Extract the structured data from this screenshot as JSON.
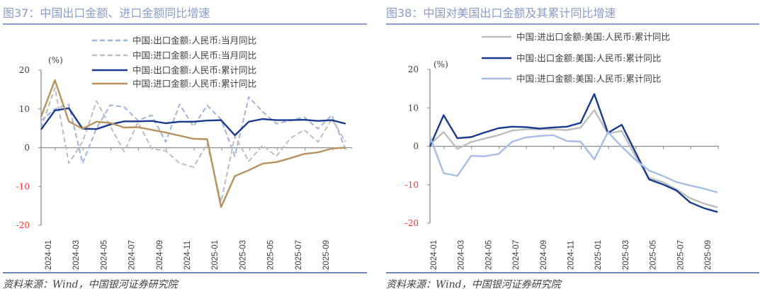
{
  "chart_data": [
    {
      "type": "line",
      "title": "图37：中国出口金额、进口金额同比增速",
      "unit_label": "(%)",
      "ylim": [
        -20,
        20
      ],
      "yticks": [
        "20",
        "10",
        "0",
        "-10",
        "-20"
      ],
      "x": [
        "2023-12",
        "2024-01",
        "2024-02",
        "2024-03",
        "2024-04",
        "2024-05",
        "2024-06",
        "2024-07",
        "2024-08",
        "2024-09",
        "2024-10",
        "2024-11",
        "2024-12",
        "2025-01",
        "2025-02",
        "2025-03",
        "2025-04",
        "2025-05",
        "2025-06",
        "2025-07",
        "2025-08",
        "2025-09",
        "2025-10"
      ],
      "xtick_labels": [
        "2024-01",
        "2024-03",
        "2024-05",
        "2024-07",
        "2024-09",
        "2024-11",
        "2025-01",
        "2025-03",
        "2025-05",
        "2025-07",
        "2025-09"
      ],
      "legend_position": "top",
      "series": [
        {
          "name": "中国:出口金额:人民币:当月同比",
          "color": "#9db3e0",
          "dash": true,
          "values": [
            7,
            10,
            11.2,
            -4,
            5,
            11,
            10.5,
            7,
            8.4,
            1.5,
            11.2,
            5.5,
            10.9,
            7.3,
            -2.2,
            13.1,
            9.3,
            6.2,
            7,
            7.9,
            4.9,
            8.4,
            -0.5
          ]
        },
        {
          "name": "中国:进口金额:人民币:当月同比",
          "color": "#bdbdbd",
          "dash": true,
          "values": [
            5,
            15.5,
            -4,
            1.5,
            12,
            5.5,
            -1,
            6.5,
            -0.3,
            -0.8,
            -4,
            -5,
            1,
            -14,
            3,
            -3.5,
            0.6,
            -2.2,
            2.4,
            4.6,
            1.5,
            7.4,
            1.5
          ]
        },
        {
          "name": "中国:出口金额:人民币:累计同比",
          "color": "#1a3a8f",
          "dash": false,
          "values": [
            4.7,
            9.6,
            10.2,
            4.9,
            4.8,
            6.0,
            6.8,
            6.8,
            6.9,
            6.3,
            6.7,
            6.7,
            7.0,
            7.1,
            3.2,
            6.7,
            7.4,
            7.1,
            7.1,
            7.2,
            6.9,
            7.1,
            6.2
          ]
        },
        {
          "name": "中国:进口金额:人民币:累计同比",
          "color": "#b8925e",
          "dash": false,
          "values": [
            8,
            17.4,
            6.8,
            4.9,
            6.7,
            6.4,
            5.2,
            5.3,
            4.6,
            3.9,
            3.1,
            2.3,
            2.2,
            -15.3,
            -7.3,
            -5.8,
            -4.1,
            -3.7,
            -2.7,
            -1.6,
            -1.2,
            -0.2,
            0
          ]
        }
      ]
    },
    {
      "type": "line",
      "title": "图38：中国对美国出口金额及其累计同比增速",
      "unit_label": "(%)",
      "ylim": [
        -20,
        20
      ],
      "yticks": [
        "20",
        "10",
        "0",
        "-10",
        "-20"
      ],
      "x": [
        "2024-01",
        "2024-02",
        "2024-03",
        "2024-04",
        "2024-05",
        "2024-06",
        "2024-07",
        "2024-08",
        "2024-09",
        "2024-10",
        "2024-11",
        "2024-12",
        "2025-01",
        "2025-02",
        "2025-03",
        "2025-04",
        "2025-05",
        "2025-06",
        "2025-07",
        "2025-08",
        "2025-09",
        "2025-10"
      ],
      "xtick_labels": [
        "2024-01",
        "2024-03",
        "2024-05",
        "2024-07",
        "2024-09",
        "2024-11",
        "2025-01",
        "2025-03",
        "2025-05",
        "2025-07",
        "2025-09"
      ],
      "legend_position": "top",
      "series": [
        {
          "name": "中国:进出口金额:美国:人民币:累计同比",
          "color": "#bdbdbd",
          "dash": false,
          "values": [
            0.5,
            3.7,
            -0.7,
            1.1,
            2.0,
            2.9,
            4.1,
            4.4,
            4.4,
            4.4,
            4.2,
            4.9,
            9.4,
            3.3,
            4.0,
            -2.5,
            -8.2,
            -9.3,
            -11.2,
            -13.5,
            -14.9,
            -15.9
          ]
        },
        {
          "name": "中国:出口金额:美国:人民币:累计同比",
          "color": "#1a3a8f",
          "dash": false,
          "values": [
            0,
            8.1,
            2.1,
            2.4,
            3.6,
            4.7,
            5.1,
            5.0,
            4.6,
            4.9,
            5.1,
            6.1,
            13.6,
            3.5,
            5.6,
            -1.5,
            -8.6,
            -9.9,
            -11.5,
            -14.6,
            -16.1,
            -17.1
          ]
        },
        {
          "name": "中国:进口金额:美国:人民币:累计同比",
          "color": "#a8bde6",
          "dash": false,
          "values": [
            2.6,
            -7.0,
            -7.7,
            -2.5,
            -2.6,
            -2.0,
            1.2,
            2.3,
            2.7,
            2.9,
            1.4,
            1.2,
            -3.4,
            3.7,
            -0.1,
            -3.5,
            -6.3,
            -7.7,
            -9.3,
            -10.2,
            -11.0,
            -12.0
          ]
        }
      ]
    }
  ],
  "source_note": "资料来源：Wind，中国银河证券研究院"
}
